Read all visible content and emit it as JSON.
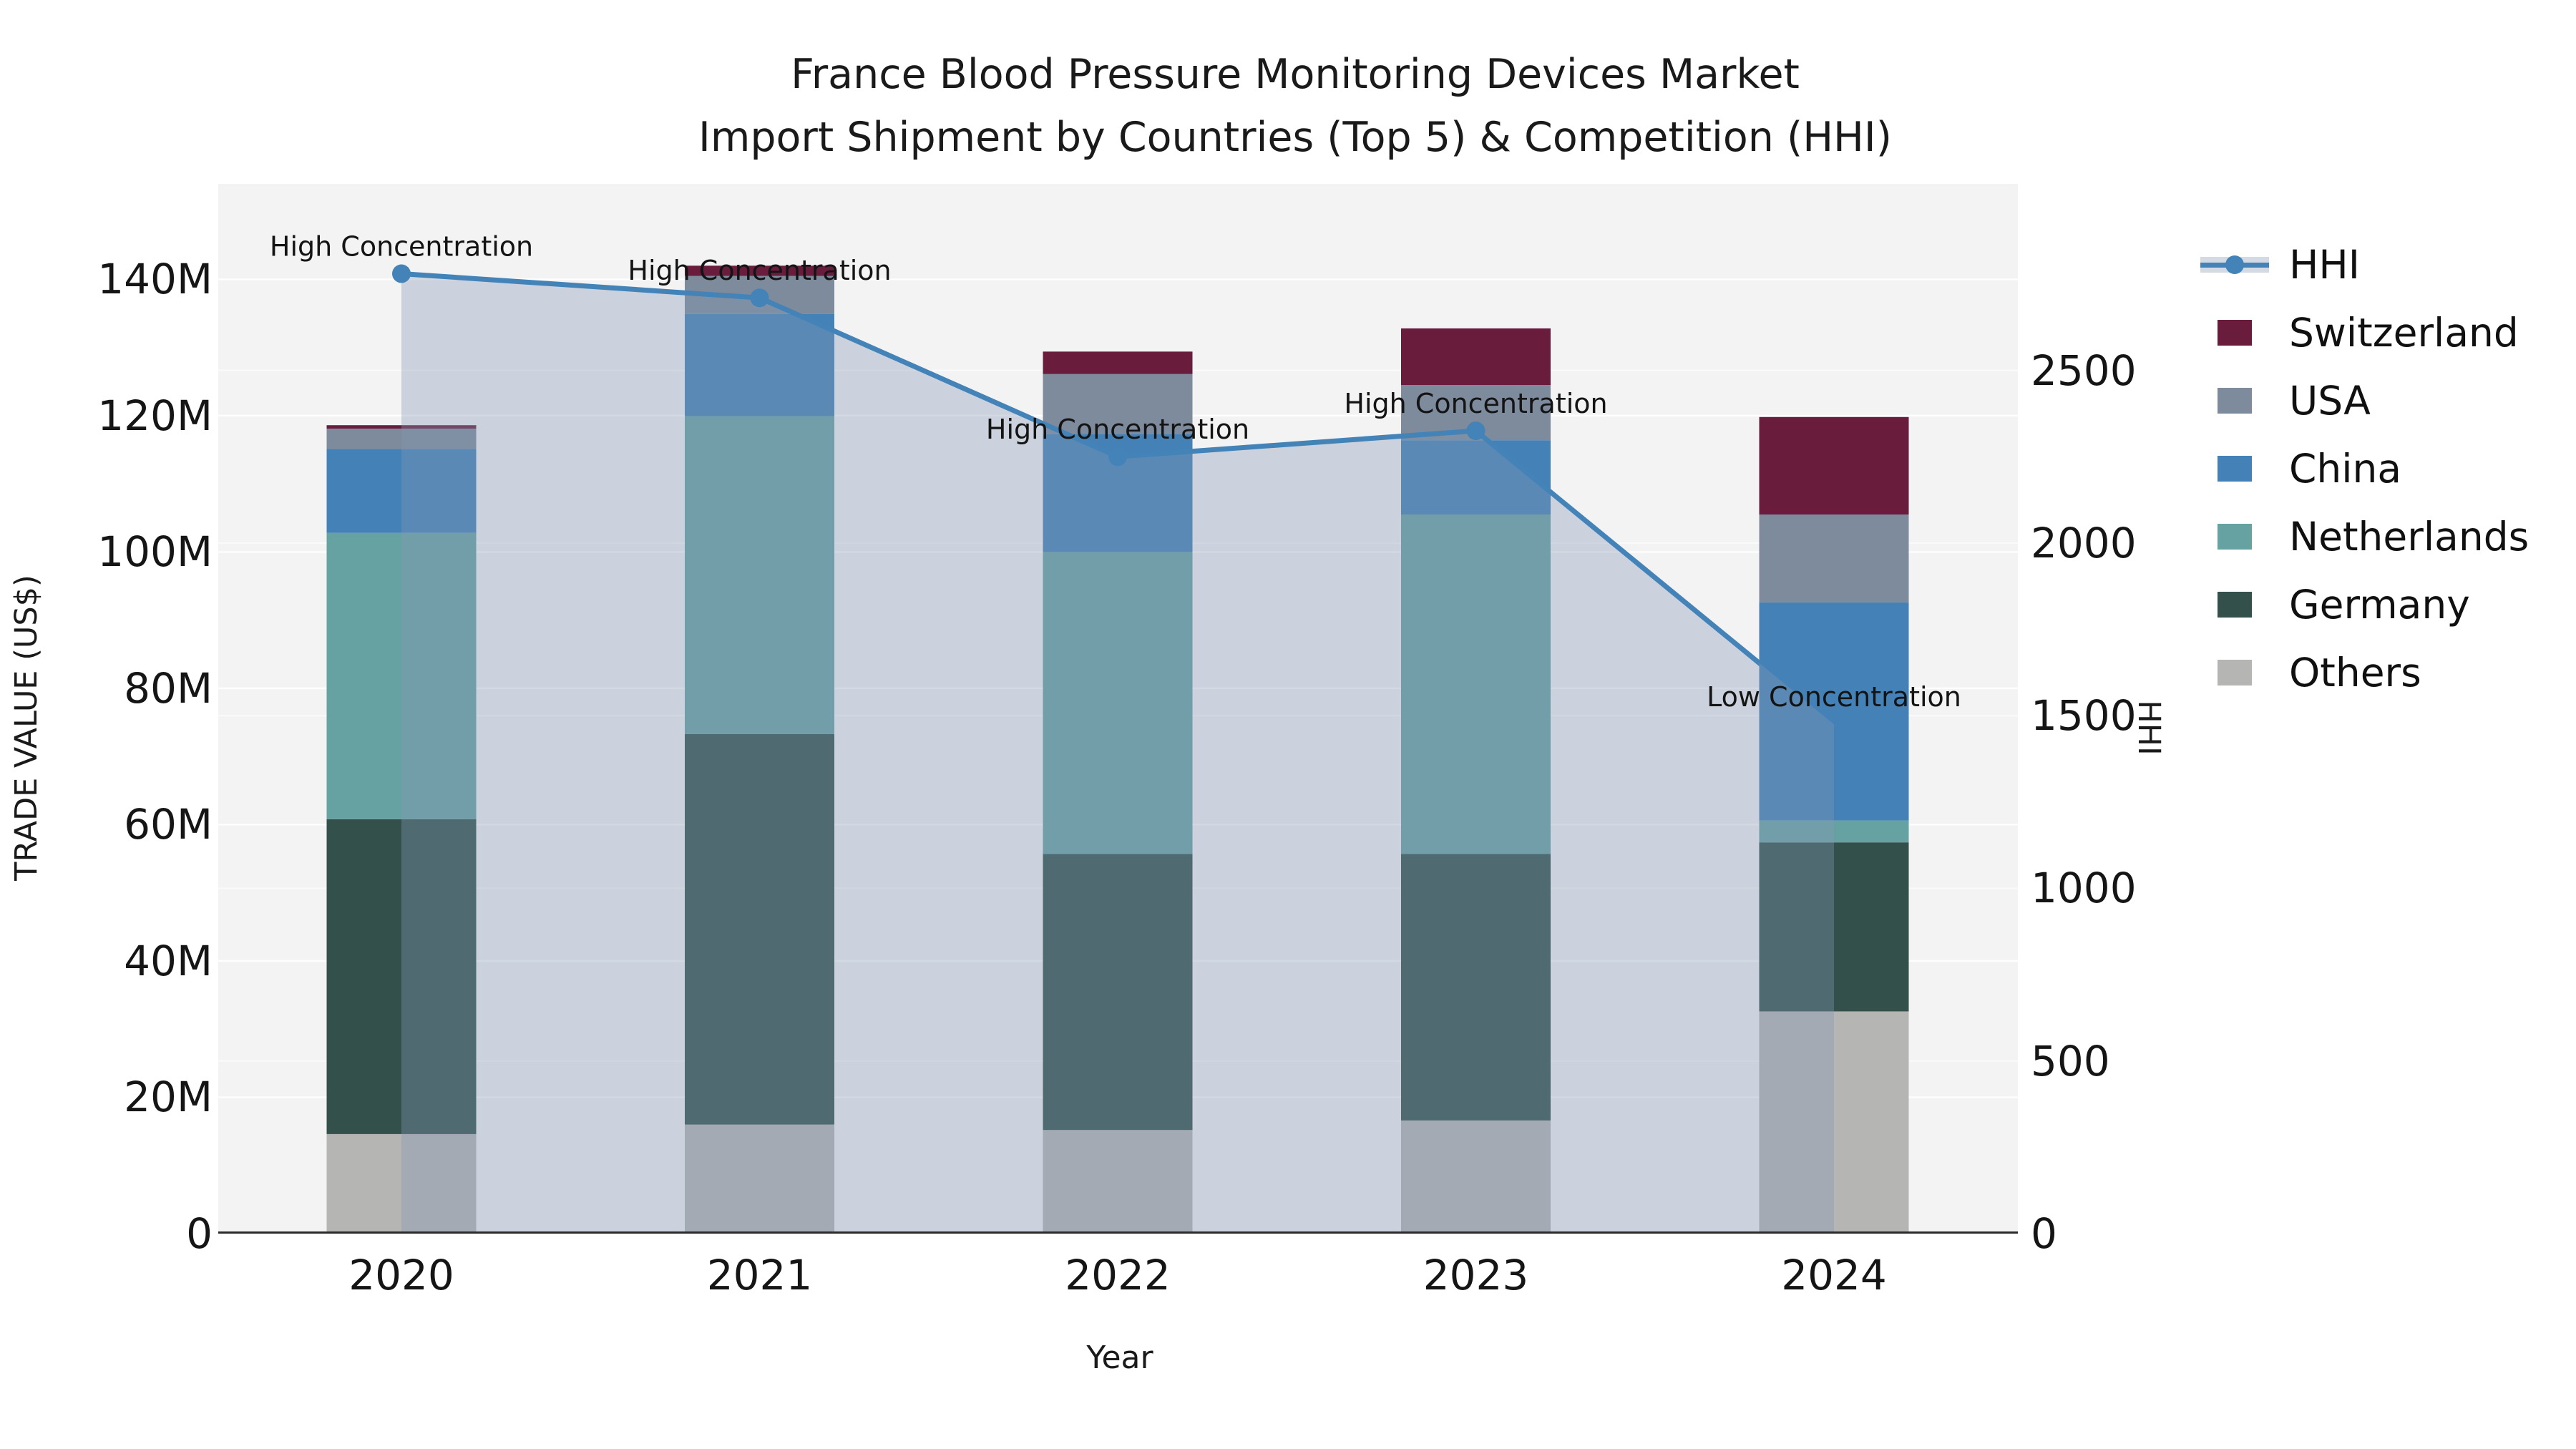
{
  "title": {
    "line1": "France Blood Pressure Monitoring Devices Market",
    "line2": "Import Shipment by Countries (Top 5) & Competition (HHI)"
  },
  "axes": {
    "x_label": "Year",
    "y_left_label": "TRADE VALUE (US$)",
    "y_right_label": "HHI",
    "y_left_ticks": [
      {
        "label": "0",
        "value": 0
      },
      {
        "label": "20M",
        "value": 20
      },
      {
        "label": "40M",
        "value": 40
      },
      {
        "label": "60M",
        "value": 60
      },
      {
        "label": "80M",
        "value": 80
      },
      {
        "label": "100M",
        "value": 100
      },
      {
        "label": "120M",
        "value": 120
      },
      {
        "label": "140M",
        "value": 140
      }
    ],
    "y_right_ticks": [
      {
        "label": "0",
        "value": 0
      },
      {
        "label": "500",
        "value": 500
      },
      {
        "label": "1000",
        "value": 1000
      },
      {
        "label": "1500",
        "value": 1500
      },
      {
        "label": "2000",
        "value": 2000
      },
      {
        "label": "2500",
        "value": 2500
      }
    ],
    "y_left_max": 154,
    "y_right_max": 3040,
    "grid": true
  },
  "chart_data": {
    "type": "combo-stacked-bar-with-line-area",
    "bar_value_unit": "US$ millions",
    "categories": [
      "2020",
      "2021",
      "2022",
      "2023",
      "2024"
    ],
    "series": [
      {
        "name": "Others",
        "color": "#b5b5b3",
        "values": [
          14.6,
          16.0,
          15.2,
          16.6,
          32.6
        ]
      },
      {
        "name": "Germany",
        "color": "#33504b",
        "values": [
          46.2,
          57.3,
          40.5,
          39.1,
          24.8
        ]
      },
      {
        "name": "Netherlands",
        "color": "#67a2a2",
        "values": [
          42.0,
          46.6,
          44.3,
          49.8,
          3.2
        ]
      },
      {
        "name": "China",
        "color": "#4481b6",
        "values": [
          12.3,
          15.0,
          17.3,
          10.9,
          32.0
        ]
      },
      {
        "name": "USA",
        "color": "#7d8b9c",
        "values": [
          3.0,
          5.6,
          8.8,
          8.1,
          12.9
        ]
      },
      {
        "name": "Switzerland",
        "color": "#6a1c3c",
        "values": [
          0.5,
          1.5,
          3.3,
          8.3,
          14.3
        ]
      }
    ],
    "line_series": {
      "name": "HHI",
      "values": [
        2780,
        2710,
        2250,
        2325,
        1475
      ],
      "color": "#4383b8",
      "area_fill": "rgba(134,152,180,0.36)"
    },
    "annotations": [
      {
        "category": "2020",
        "text": "High Concentration"
      },
      {
        "category": "2021",
        "text": "High Concentration"
      },
      {
        "category": "2022",
        "text": "High Concentration"
      },
      {
        "category": "2023",
        "text": "High Concentration"
      },
      {
        "category": "2024",
        "text": "Low Concentration"
      }
    ],
    "legend": [
      {
        "label": "HHI",
        "type": "line"
      },
      {
        "label": "Switzerland",
        "type": "patch",
        "color": "#6a1c3c"
      },
      {
        "label": "USA",
        "type": "patch",
        "color": "#7d8b9c"
      },
      {
        "label": "China",
        "type": "patch",
        "color": "#4481b6"
      },
      {
        "label": "Netherlands",
        "type": "patch",
        "color": "#67a2a2"
      },
      {
        "label": "Germany",
        "type": "patch",
        "color": "#33504b"
      },
      {
        "label": "Others",
        "type": "patch",
        "color": "#b5b5b3"
      }
    ],
    "layout_hints": {
      "legend_position": "right-outside",
      "plot_background": "#f3f3f4",
      "gridline_color": "#ffffff",
      "spine_color": "#2b2b2b"
    }
  }
}
